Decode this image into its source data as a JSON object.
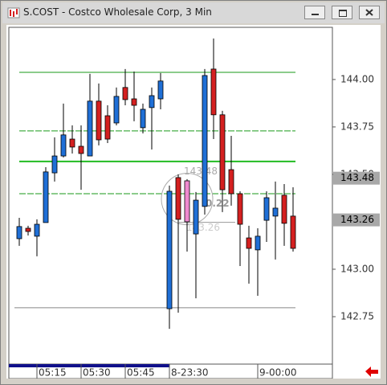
{
  "window_title": "S.COST - Costco Wholesale Corp, 3 Min",
  "chart_data": {
    "type": "candlestick",
    "categories": [
      null,
      null,
      "05:15",
      null,
      null,
      null,
      null,
      "05:30",
      null,
      null,
      null,
      null,
      "05:45",
      null,
      null,
      null,
      null,
      "8-23:30",
      null,
      null,
      null,
      null,
      null,
      null,
      null,
      null,
      null,
      "9-00:00",
      null,
      null,
      null,
      null
    ],
    "open": [
      143.161,
      143.216,
      143.174,
      143.246,
      143.508,
      143.597,
      143.686,
      143.648,
      143.597,
      143.886,
      143.809,
      143.771,
      143.958,
      143.898,
      143.746,
      143.852,
      143.898,
      142.792,
      143.483,
      143.466,
      143.186,
      143.331,
      144.055,
      143.814,
      143.525,
      143.398,
      143.165,
      143.102,
      143.258,
      143.28,
      143.39,
      143.28
    ],
    "high": [
      143.271,
      143.229,
      143.263,
      143.538,
      143.695,
      143.873,
      143.758,
      143.758,
      144.03,
      143.979,
      143.864,
      143.958,
      144.055,
      144.042,
      143.873,
      143.958,
      144.034,
      143.441,
      143.5,
      143.475,
      143.407,
      144.055,
      144.216,
      143.835,
      143.703,
      143.411,
      143.229,
      143.216,
      143.411,
      143.462,
      143.449,
      143.432
    ],
    "low": [
      143.123,
      143.178,
      143.068,
      143.246,
      143.462,
      143.589,
      143.61,
      143.419,
      143.597,
      143.653,
      143.665,
      143.758,
      143.864,
      143.78,
      143.716,
      143.631,
      143.843,
      142.686,
      142.771,
      143.093,
      142.847,
      143.288,
      143.686,
      143.301,
      143.335,
      143.017,
      142.924,
      142.86,
      143.144,
      143.051,
      143.123,
      143.093
    ],
    "close": [
      143.225,
      143.199,
      143.237,
      143.513,
      143.597,
      143.708,
      143.644,
      143.61,
      143.886,
      143.682,
      143.686,
      143.911,
      143.894,
      143.864,
      143.843,
      143.915,
      143.992,
      143.411,
      143.263,
      143.25,
      143.364,
      144.021,
      143.814,
      143.419,
      143.398,
      143.237,
      143.11,
      143.174,
      143.377,
      143.322,
      143.242,
      143.11
    ],
    "up_color": "#1f6fd6",
    "down_color": "#d42020",
    "highlight": 19,
    "highlight_color": "#f08ad0",
    "ylim": [
      142.5,
      144.275
    ],
    "yticks": [
      {
        "value": 144,
        "label": "144.00"
      },
      {
        "value": 143.75,
        "label": "143.75"
      },
      {
        "value": 143.5,
        "label": "143.50"
      },
      {
        "value": 143,
        "label": "143.00"
      },
      {
        "value": 142.75,
        "label": "142.75"
      }
    ],
    "levels": [
      {
        "value": 144.038,
        "color": "#1a9a1a",
        "style": "solid"
      },
      {
        "value": 143.729,
        "color": "#1a9a1a",
        "style": "dashed"
      },
      {
        "value": 143.568,
        "color": "#22bb22",
        "style": "thick"
      },
      {
        "value": 143.398,
        "color": "#1a9a1a",
        "style": "dashed"
      },
      {
        "value": 142.797,
        "color": "#888888",
        "style": "solid"
      }
    ],
    "price_markers": [
      {
        "value": 143.48,
        "label": "143.48"
      },
      {
        "value": 143.26,
        "label": "143.26"
      }
    ],
    "measure": {
      "top": 143.48,
      "bottom": 143.26,
      "top_label": "143.48",
      "bottom_label": "143.26",
      "diff": 0.22,
      "diff_label": "0.22"
    }
  }
}
